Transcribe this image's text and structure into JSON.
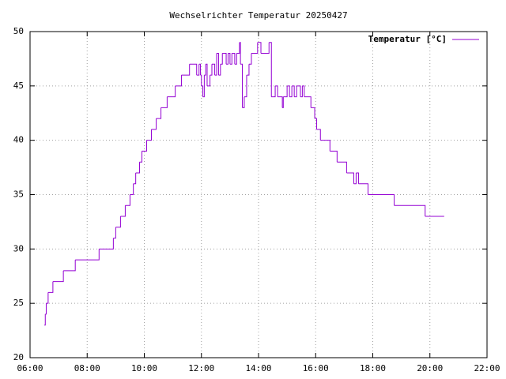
{
  "chart_data": {
    "type": "line",
    "title": "Wechselrichter Temperatur 20250427",
    "x": [
      "06:30",
      "06:32",
      "06:34",
      "06:38",
      "06:48",
      "07:10",
      "07:35",
      "08:25",
      "08:55",
      "09:00",
      "09:10",
      "09:20",
      "09:30",
      "09:37",
      "09:42",
      "09:50",
      "09:55",
      "10:05",
      "10:15",
      "10:25",
      "10:35",
      "10:48",
      "11:05",
      "11:18",
      "11:35",
      "11:50",
      "11:55",
      "11:58",
      "12:00",
      "12:03",
      "12:06",
      "12:09",
      "12:12",
      "12:18",
      "12:22",
      "12:28",
      "12:32",
      "12:36",
      "12:40",
      "12:44",
      "12:52",
      "12:56",
      "13:00",
      "13:04",
      "13:10",
      "13:14",
      "13:20",
      "13:22",
      "13:26",
      "13:30",
      "13:35",
      "13:40",
      "13:45",
      "13:58",
      "14:05",
      "14:22",
      "14:27",
      "14:35",
      "14:40",
      "14:50",
      "14:52",
      "15:00",
      "15:05",
      "15:10",
      "15:15",
      "15:20",
      "15:28",
      "15:32",
      "15:36",
      "15:50",
      "15:58",
      "16:02",
      "16:10",
      "16:30",
      "16:45",
      "17:05",
      "17:20",
      "17:25",
      "17:30",
      "17:50",
      "18:45",
      "19:50",
      "20:30"
    ],
    "series": [
      {
        "name": "Temperatur [°C]",
        "color": "#9400d3",
        "values": [
          23,
          24,
          25,
          26,
          27,
          28,
          29,
          30,
          31,
          32,
          33,
          34,
          35,
          36,
          37,
          38,
          39,
          40,
          41,
          42,
          43,
          44,
          45,
          46,
          47,
          46,
          47,
          46,
          45,
          44,
          46,
          47,
          45,
          46,
          47,
          46,
          48,
          46,
          47,
          48,
          47,
          48,
          47,
          48,
          47,
          48,
          49,
          47,
          43,
          44,
          46,
          47,
          48,
          49,
          48,
          49,
          44,
          45,
          44,
          43,
          44,
          45,
          44,
          45,
          44,
          45,
          44,
          45,
          44,
          43,
          42,
          41,
          40,
          39,
          38,
          37,
          36,
          37,
          36,
          35,
          34,
          33,
          33
        ]
      }
    ],
    "steps": true,
    "xlim": [
      "06:00",
      "22:00"
    ],
    "xticks": [
      "06:00",
      "08:00",
      "10:00",
      "12:00",
      "14:00",
      "16:00",
      "18:00",
      "20:00",
      "22:00"
    ],
    "ylim": [
      20,
      50
    ],
    "yticks": [
      20,
      25,
      30,
      35,
      40,
      45,
      50
    ],
    "grid": true,
    "legend": "top-right"
  }
}
